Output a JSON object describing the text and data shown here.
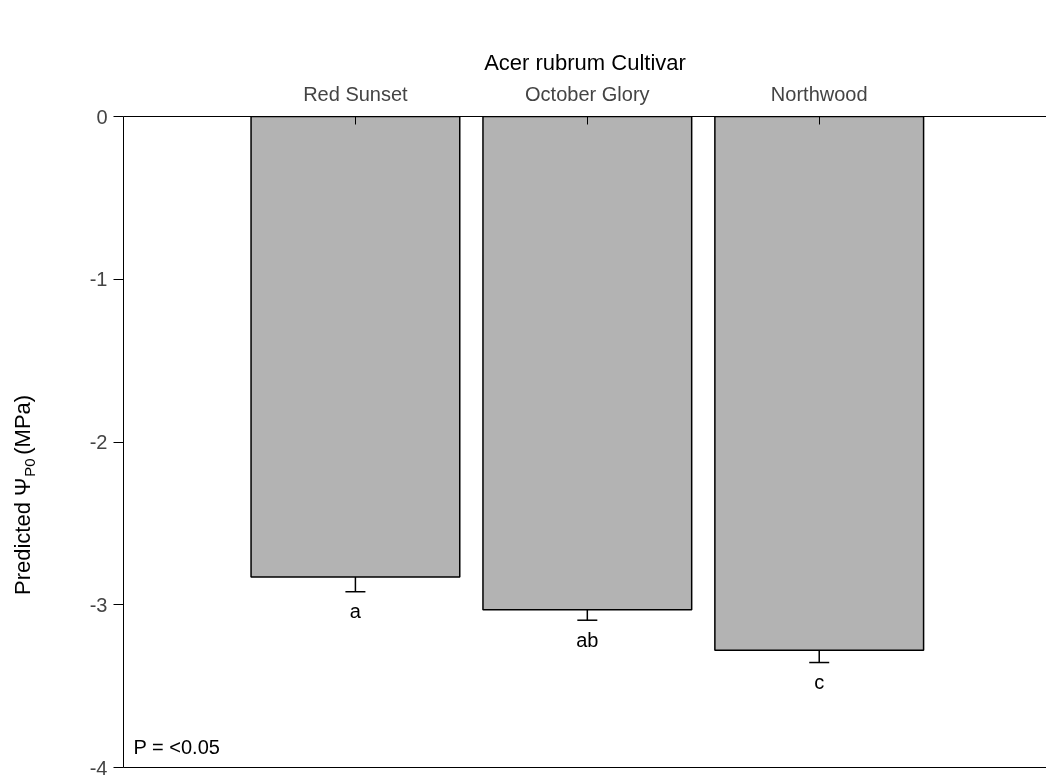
{
  "chart_data": {
    "type": "bar",
    "title": "Acer rubrum Cultivar",
    "ylabel": "Predicted Ψ$_{P0}$ (MPa)",
    "categories": [
      "Red Sunset",
      "October Glory",
      "Northwood"
    ],
    "values": [
      -2.83,
      -3.03,
      -3.28
    ],
    "errors": [
      0.09,
      0.065,
      0.075
    ],
    "color": "#b3b3b3",
    "ylim": [
      -4,
      0
    ],
    "yticks": [
      0,
      -1,
      -2,
      -3,
      -4
    ],
    "grid": false,
    "annotations": [
      "a",
      "ab",
      "c",
      "P = <0.05"
    ]
  }
}
